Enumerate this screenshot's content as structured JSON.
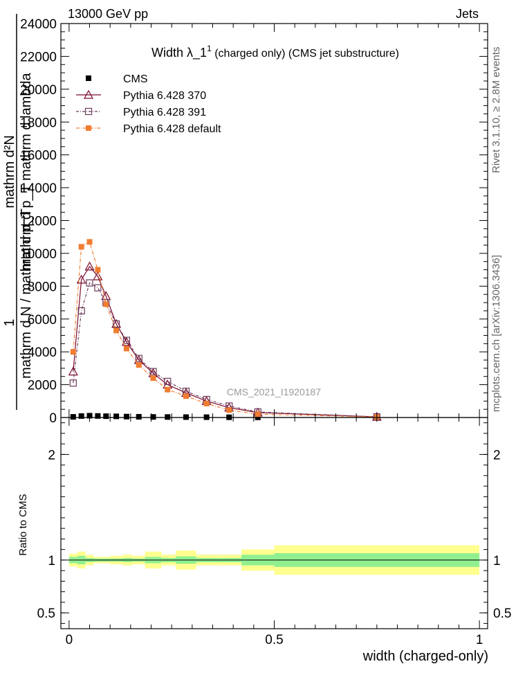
{
  "header": {
    "left": "13000 GeV pp",
    "right": "Jets"
  },
  "side_text": {
    "rivet": "Rivet 3.1.10, ≥ 2.8M events",
    "mcplots": "mcplots.cern.ch [arXiv:1306.3436]"
  },
  "chart_data": {
    "type": "line",
    "title": "Width λ_1¹ (charged only) (CMS jet substructure)",
    "title_main": "Width λ_1",
    "title_sup": "1",
    "title_sub": " (charged only) (CMS jet substructure)",
    "watermark": "CMS_2021_I1920187",
    "xlabel": "width (charged-only)",
    "ylabel_lines": [
      "mathrm d²N",
      "mathrm d p_T mathrm d lambda",
      "1",
      "mathrm d N / mathrm d p_T"
    ],
    "ratio_ylabel": "Ratio to CMS",
    "xlim": [
      -0.02,
      1.02
    ],
    "ylim": [
      0,
      24000
    ],
    "ratio_ylim": [
      0.35,
      2.35
    ],
    "x_ticks": [
      0,
      0.5,
      1
    ],
    "x_tick_labels": [
      "0",
      "0.5",
      "1"
    ],
    "y_ticks": [
      0,
      2000,
      4000,
      6000,
      8000,
      10000,
      12000,
      14000,
      16000,
      18000,
      20000,
      22000,
      24000
    ],
    "y_tick_labels": [
      "0",
      "2000",
      "4000",
      "6000",
      "8000",
      "10000",
      "12000",
      "14000",
      "16000",
      "18000",
      "20000",
      "22000",
      "24000"
    ],
    "ratio_ticks": [
      0.5,
      1,
      2
    ],
    "ratio_tick_labels": [
      "0.5",
      "1",
      "2"
    ],
    "legend_position": "top-left",
    "series": [
      {
        "name": "CMS",
        "color": "#000000",
        "marker": "filled-square",
        "x": [
          0.01,
          0.03,
          0.05,
          0.07,
          0.09,
          0.115,
          0.14,
          0.17,
          0.205,
          0.24,
          0.285,
          0.335,
          0.39,
          0.46,
          0.75
        ],
        "y": [
          40,
          90,
          110,
          95,
          80,
          70,
          55,
          45,
          35,
          30,
          25,
          20,
          15,
          10,
          4
        ]
      },
      {
        "name": "Pythia 6.428 370",
        "color": "#7a0a2a",
        "marker": "open-triangle",
        "x": [
          0.01,
          0.03,
          0.05,
          0.07,
          0.09,
          0.115,
          0.14,
          0.17,
          0.205,
          0.24,
          0.285,
          0.335,
          0.39,
          0.46,
          0.75
        ],
        "y": [
          2800,
          8400,
          9200,
          8600,
          7400,
          5700,
          4600,
          3500,
          2700,
          2000,
          1500,
          1000,
          600,
          300,
          40
        ]
      },
      {
        "name": "Pythia 6.428 391",
        "color": "#6a3a5a",
        "marker": "open-square",
        "x": [
          0.01,
          0.03,
          0.05,
          0.07,
          0.09,
          0.115,
          0.14,
          0.17,
          0.205,
          0.24,
          0.285,
          0.335,
          0.39,
          0.46,
          0.75
        ],
        "y": [
          2100,
          6500,
          8200,
          7900,
          7000,
          5700,
          4700,
          3600,
          2800,
          2200,
          1600,
          1100,
          700,
          340,
          40
        ]
      },
      {
        "name": "Pythia 6.428 default",
        "color": "#f07c30",
        "marker": "filled-square",
        "x": [
          0.01,
          0.03,
          0.05,
          0.07,
          0.09,
          0.115,
          0.14,
          0.17,
          0.205,
          0.24,
          0.285,
          0.335,
          0.39,
          0.46,
          0.75
        ],
        "y": [
          4000,
          10400,
          10700,
          9000,
          6900,
          5300,
          4200,
          3200,
          2400,
          1700,
          1300,
          850,
          450,
          200,
          30
        ]
      }
    ],
    "ratio_bands": {
      "edges": [
        0,
        0.02,
        0.04,
        0.06,
        0.08,
        0.1,
        0.13,
        0.155,
        0.185,
        0.225,
        0.26,
        0.31,
        0.36,
        0.42,
        0.5,
        1.0
      ],
      "stat": [
        0.03,
        0.04,
        0.02,
        0.015,
        0.015,
        0.015,
        0.02,
        0.015,
        0.03,
        0.02,
        0.035,
        0.02,
        0.02,
        0.05,
        0.065
      ],
      "total": [
        0.06,
        0.08,
        0.05,
        0.03,
        0.03,
        0.04,
        0.05,
        0.04,
        0.08,
        0.05,
        0.09,
        0.05,
        0.05,
        0.1,
        0.14
      ],
      "stat_color": "#90f090",
      "total_color": "#ffff90"
    }
  }
}
